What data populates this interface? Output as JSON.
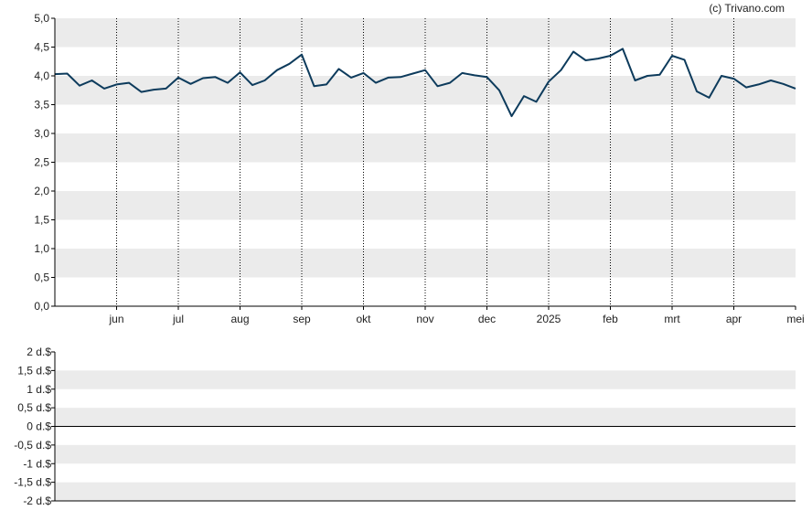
{
  "copyright": "(c) Trivano.com",
  "colors": {
    "line": "#0d3b5c",
    "band": "#ebebeb",
    "grid": "#000000",
    "text": "#222222"
  },
  "chart_data": [
    {
      "type": "line",
      "title": "",
      "xlabel": "",
      "ylabel": "",
      "ylim": [
        0,
        5
      ],
      "y_ticks": [
        "0,0",
        "0,5",
        "1,0",
        "1,5",
        "2,0",
        "2,5",
        "3,0",
        "3,5",
        "4,0",
        "4,5",
        "5,0"
      ],
      "x_ticks": [
        "jun",
        "jul",
        "aug",
        "sep",
        "okt",
        "nov",
        "dec",
        "2025",
        "feb",
        "mrt",
        "apr",
        "mei"
      ],
      "grid": "vertical dotted lines at month ticks; alternating horizontal bands",
      "series": [
        {
          "x_positions": [
            0,
            0.2,
            0.4,
            0.6,
            0.8,
            1.0,
            1.2,
            1.4,
            1.6,
            1.8,
            2.0,
            2.2,
            2.4,
            2.6,
            2.8,
            3.0,
            3.2,
            3.4,
            3.6,
            3.8,
            4.0,
            4.2,
            4.4,
            4.6,
            4.8,
            5.0,
            5.2,
            5.4,
            5.6,
            5.8,
            6.0,
            6.2,
            6.4,
            6.6,
            6.8,
            7.0,
            7.2,
            7.4,
            7.6,
            7.8,
            8.0,
            8.2,
            8.4,
            8.6,
            8.8,
            9.0,
            9.2,
            9.4,
            9.6,
            9.8,
            10.0,
            10.2,
            10.4,
            10.6,
            10.8,
            11.0,
            11.2,
            11.4,
            11.6,
            11.8,
            12.0
          ],
          "values": [
            4.03,
            4.04,
            3.83,
            3.92,
            3.78,
            3.85,
            3.88,
            3.72,
            3.76,
            3.78,
            3.97,
            3.86,
            3.96,
            3.98,
            3.88,
            4.06,
            3.84,
            3.92,
            4.1,
            4.21,
            4.37,
            3.82,
            3.85,
            4.12,
            3.97,
            4.05,
            3.88,
            3.97,
            3.98,
            4.04,
            4.1,
            3.82,
            3.88,
            4.05,
            4.01,
            3.98,
            3.75,
            3.3,
            3.65,
            3.55,
            3.9,
            4.1,
            4.42,
            4.27,
            4.3,
            4.35,
            4.47,
            3.92,
            4.0,
            4.02,
            4.35,
            4.28,
            3.73,
            3.62,
            4.0,
            3.95,
            3.8,
            3.85,
            3.92,
            3.86,
            3.78
          ],
          "x_scale": "month index (0 = start, 12 = end)"
        }
      ]
    },
    {
      "type": "line",
      "title": "",
      "xlabel": "",
      "ylabel": "",
      "ylim": [
        -2,
        2
      ],
      "y_ticks": [
        "2 d.$",
        "1,5 d.$",
        "1 d.$",
        "0,5 d.$",
        "0 d.$",
        "-0,5 d.$",
        "-1 d.$",
        "-1,5 d.$",
        "-2 d.$"
      ],
      "series": []
    }
  ]
}
